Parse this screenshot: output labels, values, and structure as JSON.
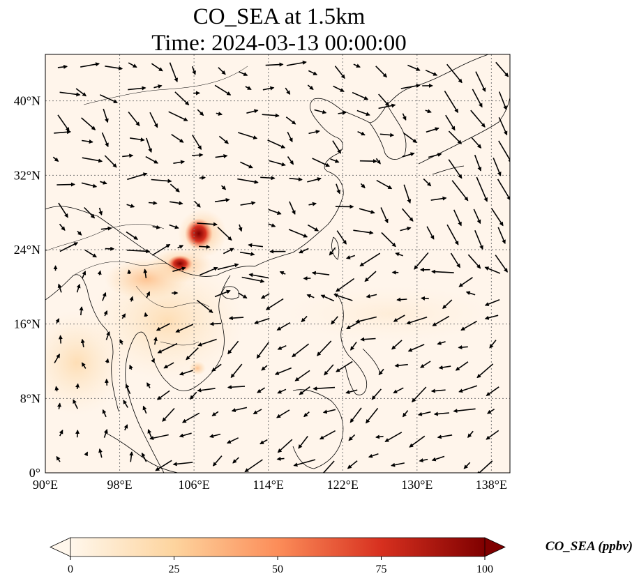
{
  "title": {
    "line1": "CO_SEA at 1.5km",
    "line2": "Time: 2024-03-13 00:00:00"
  },
  "map": {
    "lon_range": [
      90,
      140
    ],
    "lat_range": [
      0,
      45
    ],
    "x_ticks": [
      "90°E",
      "98°E",
      "106°E",
      "114°E",
      "122°E",
      "130°E",
      "138°E"
    ],
    "x_tick_values": [
      90,
      98,
      106,
      114,
      122,
      130,
      138
    ],
    "y_ticks": [
      "0°",
      "8°N",
      "16°N",
      "24°N",
      "32°N",
      "40°N"
    ],
    "y_tick_values": [
      0,
      8,
      16,
      24,
      32,
      40
    ],
    "gridlines": "dotted",
    "background_color": "#fff5eb",
    "coastline_color": "#000000",
    "overlay": "wind vectors"
  },
  "colorbar": {
    "label": "CO_SEA (ppbv)",
    "ticks": [
      "0",
      "25",
      "50",
      "75",
      "100"
    ],
    "tick_values": [
      0,
      25,
      50,
      75,
      100
    ],
    "range": [
      0,
      100
    ],
    "colormap": "OrRd",
    "colors": [
      "#fff7ec",
      "#fdd49e",
      "#fc8d59",
      "#d7301f",
      "#7f0000"
    ],
    "extend": "both"
  }
}
